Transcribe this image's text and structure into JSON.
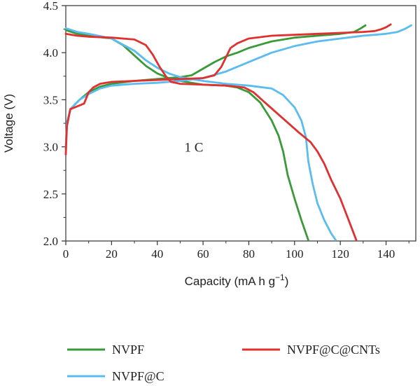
{
  "chart_data": {
    "type": "line",
    "title": "",
    "xlabel": "Capacity (mA h g",
    "xlabel_sup": "−1",
    "xlabel_close": ")",
    "ylabel": "Voltage (V)",
    "xlim": [
      0,
      153
    ],
    "ylim": [
      2.0,
      4.5
    ],
    "xticks": [
      0,
      20,
      40,
      60,
      80,
      100,
      120,
      140
    ],
    "yticks": [
      2.0,
      2.5,
      3.0,
      3.5,
      4.0,
      4.5
    ],
    "xtick_labels": [
      "0",
      "20",
      "40",
      "60",
      "80",
      "100",
      "120",
      "140"
    ],
    "ytick_labels": [
      "2.0",
      "2.5",
      "3.0",
      "3.5",
      "4.0",
      "4.5"
    ],
    "grid": false,
    "legend_placement": "bottom",
    "annotation": "1 C",
    "series": [
      {
        "name": "NVPF",
        "color": "#3a9a3a",
        "charge": [
          [
            0,
            2.98
          ],
          [
            0.5,
            3.25
          ],
          [
            2,
            3.4
          ],
          [
            6,
            3.5
          ],
          [
            10,
            3.58
          ],
          [
            15,
            3.64
          ],
          [
            20,
            3.67
          ],
          [
            30,
            3.7
          ],
          [
            40,
            3.72
          ],
          [
            50,
            3.74
          ],
          [
            55,
            3.76
          ],
          [
            60,
            3.83
          ],
          [
            65,
            3.9
          ],
          [
            70,
            3.96
          ],
          [
            75,
            4.0
          ],
          [
            80,
            4.05
          ],
          [
            90,
            4.12
          ],
          [
            100,
            4.16
          ],
          [
            110,
            4.18
          ],
          [
            120,
            4.2
          ],
          [
            126,
            4.22
          ],
          [
            129,
            4.26
          ],
          [
            131,
            4.29
          ]
        ],
        "discharge": [
          [
            0,
            4.24
          ],
          [
            5,
            4.2
          ],
          [
            10,
            4.18
          ],
          [
            20,
            4.15
          ],
          [
            25,
            4.08
          ],
          [
            30,
            3.97
          ],
          [
            35,
            3.86
          ],
          [
            40,
            3.78
          ],
          [
            45,
            3.73
          ],
          [
            50,
            3.7
          ],
          [
            60,
            3.66
          ],
          [
            70,
            3.65
          ],
          [
            75,
            3.63
          ],
          [
            80,
            3.58
          ],
          [
            85,
            3.47
          ],
          [
            90,
            3.28
          ],
          [
            93,
            3.12
          ],
          [
            95,
            2.95
          ],
          [
            97,
            2.7
          ],
          [
            100,
            2.45
          ],
          [
            103,
            2.22
          ],
          [
            106,
            2.01
          ]
        ]
      },
      {
        "name": "NVPF@C",
        "color": "#5bbcf0",
        "charge": [
          [
            0,
            3.0
          ],
          [
            0.5,
            3.25
          ],
          [
            2,
            3.4
          ],
          [
            6,
            3.5
          ],
          [
            10,
            3.56
          ],
          [
            15,
            3.62
          ],
          [
            20,
            3.65
          ],
          [
            30,
            3.67
          ],
          [
            40,
            3.68
          ],
          [
            50,
            3.7
          ],
          [
            60,
            3.73
          ],
          [
            70,
            3.8
          ],
          [
            80,
            3.9
          ],
          [
            90,
            4.0
          ],
          [
            100,
            4.07
          ],
          [
            110,
            4.12
          ],
          [
            120,
            4.15
          ],
          [
            130,
            4.18
          ],
          [
            140,
            4.2
          ],
          [
            145,
            4.22
          ],
          [
            148,
            4.25
          ],
          [
            151,
            4.29
          ]
        ],
        "discharge": [
          [
            0,
            4.26
          ],
          [
            5,
            4.22
          ],
          [
            10,
            4.2
          ],
          [
            20,
            4.15
          ],
          [
            30,
            4.02
          ],
          [
            35,
            3.92
          ],
          [
            40,
            3.84
          ],
          [
            45,
            3.78
          ],
          [
            50,
            3.74
          ],
          [
            60,
            3.7
          ],
          [
            70,
            3.67
          ],
          [
            80,
            3.65
          ],
          [
            90,
            3.62
          ],
          [
            95,
            3.55
          ],
          [
            100,
            3.42
          ],
          [
            103,
            3.28
          ],
          [
            105,
            3.1
          ],
          [
            106,
            2.85
          ],
          [
            108,
            2.6
          ],
          [
            110,
            2.4
          ],
          [
            113,
            2.22
          ],
          [
            116,
            2.08
          ],
          [
            118,
            2.01
          ]
        ]
      },
      {
        "name": "NVPF@C@CNTs",
        "color": "#e03030",
        "charge": [
          [
            0,
            2.92
          ],
          [
            0.5,
            3.22
          ],
          [
            2,
            3.4
          ],
          [
            4,
            3.42
          ],
          [
            6,
            3.44
          ],
          [
            8,
            3.46
          ],
          [
            9,
            3.52
          ],
          [
            10,
            3.58
          ],
          [
            12,
            3.63
          ],
          [
            15,
            3.67
          ],
          [
            20,
            3.69
          ],
          [
            30,
            3.7
          ],
          [
            40,
            3.71
          ],
          [
            50,
            3.72
          ],
          [
            60,
            3.73
          ],
          [
            65,
            3.76
          ],
          [
            68,
            3.85
          ],
          [
            70,
            3.95
          ],
          [
            72,
            4.05
          ],
          [
            75,
            4.1
          ],
          [
            80,
            4.15
          ],
          [
            90,
            4.18
          ],
          [
            100,
            4.19
          ],
          [
            110,
            4.2
          ],
          [
            120,
            4.21
          ],
          [
            130,
            4.22
          ],
          [
            135,
            4.23
          ],
          [
            138,
            4.25
          ],
          [
            140,
            4.27
          ],
          [
            142,
            4.3
          ]
        ],
        "discharge": [
          [
            0,
            4.2
          ],
          [
            5,
            4.18
          ],
          [
            10,
            4.17
          ],
          [
            20,
            4.16
          ],
          [
            30,
            4.14
          ],
          [
            35,
            4.08
          ],
          [
            38,
            3.98
          ],
          [
            41,
            3.85
          ],
          [
            44,
            3.74
          ],
          [
            46,
            3.69
          ],
          [
            50,
            3.67
          ],
          [
            60,
            3.66
          ],
          [
            70,
            3.65
          ],
          [
            78,
            3.63
          ],
          [
            82,
            3.58
          ],
          [
            88,
            3.45
          ],
          [
            95,
            3.3
          ],
          [
            102,
            3.15
          ],
          [
            107,
            3.05
          ],
          [
            110,
            2.95
          ],
          [
            113,
            2.82
          ],
          [
            116,
            2.65
          ],
          [
            120,
            2.45
          ],
          [
            124,
            2.2
          ],
          [
            127,
            2.01
          ]
        ]
      }
    ]
  }
}
